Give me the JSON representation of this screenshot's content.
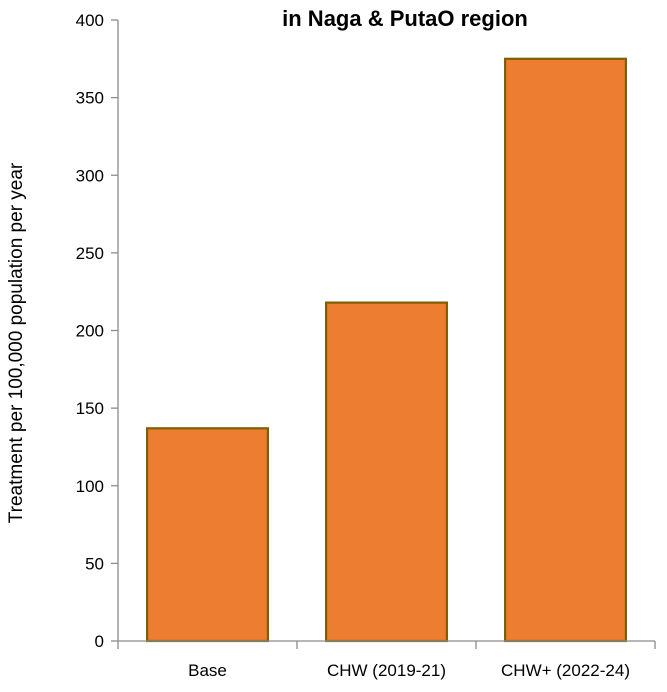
{
  "chart_data": {
    "type": "bar",
    "title": "in Naga & PutaO region",
    "xlabel": "",
    "ylabel": "Treatment per 100,000 population  per year",
    "categories": [
      "Base",
      "CHW (2019-21)",
      "CHW+ (2022-24)"
    ],
    "values": [
      137,
      218,
      375
    ],
    "ylim": [
      0,
      400
    ],
    "yticks": [
      0,
      50,
      100,
      150,
      200,
      250,
      300,
      350,
      400
    ],
    "grid": false,
    "legend": "none",
    "bar_color": "#ed7d31",
    "bar_edge_color": "#7f6000",
    "axis_color": "#8c8c8c"
  }
}
